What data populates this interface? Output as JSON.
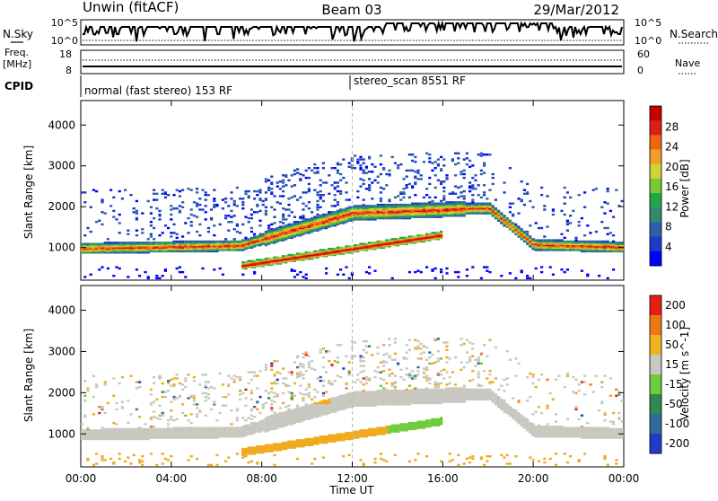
{
  "header": {
    "station": "Unwin (fitACF)",
    "beam": "Beam 03",
    "date": "29/Mar/2012"
  },
  "top_panels": {
    "nsky_label": "N.Sky",
    "nsky_ticks": [
      "10^5",
      "10^0"
    ],
    "nsearch_label": "N.Search",
    "nsearch_ticks": [
      "10^5",
      "10^0"
    ],
    "freq_label_1": "Freq.",
    "freq_label_2": "[MHz]",
    "freq_ticks": [
      "18",
      "8"
    ],
    "nave_label": "Nave",
    "nave_ticks": [
      "60",
      "0"
    ],
    "cpid_label": "CPID",
    "cpid_modes": [
      {
        "name": "normal (fast stereo) 153 RF",
        "start_hour": 0
      },
      {
        "name": "stereo_scan 8551 RF",
        "start_hour": 12
      }
    ]
  },
  "chart_data": [
    {
      "type": "heatmap",
      "title": "",
      "xlabel": "Time UT",
      "ylabel": "Slant Range [km]",
      "x_ticks": [
        "00:00",
        "04:00",
        "08:00",
        "12:00",
        "16:00",
        "20:00",
        "00:00"
      ],
      "xlim_hours": [
        0,
        24
      ],
      "y_ticks": [
        1000,
        2000,
        3000,
        4000
      ],
      "ylim": [
        200,
        4600
      ],
      "colorbar_label": "Power [dB]",
      "colorbar_ticks": [
        4,
        8,
        12,
        16,
        20,
        24,
        28
      ],
      "colorbar_colors": [
        "#0000ff",
        "#1a3cc8",
        "#2f5fa8",
        "#2f8a6e",
        "#1ea84a",
        "#7ac832",
        "#d2d232",
        "#f0a028",
        "#f06414",
        "#dc1e14",
        "#c80000"
      ]
    },
    {
      "type": "heatmap",
      "title": "",
      "xlabel": "Time UT",
      "ylabel": "Slant Range [km]",
      "x_ticks": [
        "00:00",
        "04:00",
        "08:00",
        "12:00",
        "16:00",
        "20:00",
        "00:00"
      ],
      "xlim_hours": [
        0,
        24
      ],
      "y_ticks": [
        1000,
        2000,
        3000,
        4000
      ],
      "ylim": [
        200,
        4600
      ],
      "colorbar_label": "Velocity [m s^-1]",
      "colorbar_ticks": [
        "200",
        "100",
        "50",
        "15",
        "-15",
        "-50",
        "-100",
        "-200"
      ],
      "colorbar_colors": [
        "#1e3cc8",
        "#2f6a9a",
        "#2f8a50",
        "#6ecc3c",
        "#c8c8c0",
        "#f0b41e",
        "#f07814",
        "#e61e14"
      ]
    }
  ],
  "colors": {
    "ground_scatter": "#c8c8c0",
    "velocity_orange": "#f0aa1e",
    "velocity_green": "#6ecc3c"
  }
}
